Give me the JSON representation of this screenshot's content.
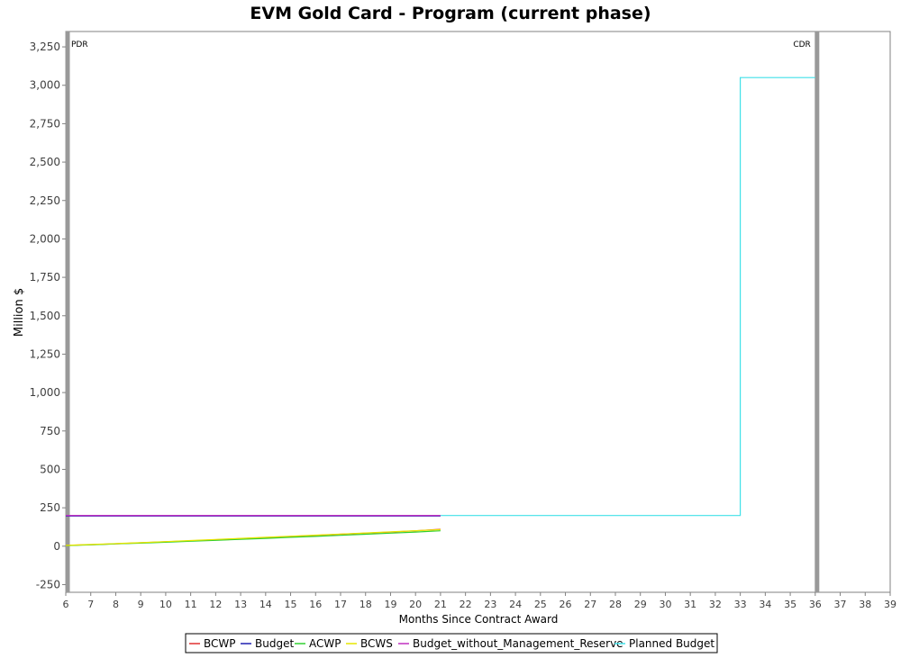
{
  "chart_data": {
    "type": "line",
    "title": "EVM Gold Card - Program (current phase)",
    "xlabel": "Months Since Contract Award",
    "ylabel": "Million $",
    "xlim": [
      6,
      39
    ],
    "ylim": [
      -300,
      3350
    ],
    "xticks": [
      6,
      7,
      8,
      9,
      10,
      11,
      12,
      13,
      14,
      15,
      16,
      17,
      18,
      19,
      20,
      21,
      22,
      23,
      24,
      25,
      26,
      27,
      28,
      29,
      30,
      31,
      32,
      33,
      34,
      35,
      36,
      37,
      38,
      39
    ],
    "yticks": [
      -250,
      0,
      250,
      500,
      750,
      1000,
      1250,
      1500,
      1750,
      2000,
      2250,
      2500,
      2750,
      3000,
      3250
    ],
    "ytick_labels": [
      "-250",
      "0",
      "250",
      "500",
      "750",
      "1,000",
      "1,250",
      "1,500",
      "1,750",
      "2,000",
      "2,250",
      "2,500",
      "2,750",
      "3,000",
      "3,250"
    ],
    "grid": false,
    "legend_position": "bottom",
    "milestones": [
      {
        "label": "PDR",
        "x": 6
      },
      {
        "label": "CDR",
        "x": 36
      }
    ],
    "series": [
      {
        "name": "BCWP",
        "color": "#e03030",
        "x": [
          6,
          7,
          8,
          9,
          10,
          11,
          12,
          13,
          14,
          15,
          16,
          17,
          18,
          19,
          20,
          21
        ],
        "y": [
          5,
          10,
          16,
          22,
          29,
          35,
          42,
          49,
          56,
          63,
          70,
          78,
          85,
          92,
          100,
          110
        ]
      },
      {
        "name": "Budget",
        "color": "#2020b0",
        "x": [
          6,
          21
        ],
        "y": [
          197,
          197
        ]
      },
      {
        "name": "ACWP",
        "color": "#30d030",
        "x": [
          6,
          7,
          8,
          9,
          10,
          11,
          12,
          13,
          14,
          15,
          16,
          17,
          18,
          19,
          20,
          21
        ],
        "y": [
          4,
          9,
          15,
          20,
          26,
          32,
          38,
          45,
          51,
          58,
          64,
          71,
          78,
          85,
          92,
          100
        ]
      },
      {
        "name": "BCWS",
        "color": "#e6e600",
        "x": [
          6,
          7,
          8,
          9,
          10,
          11,
          12,
          13,
          14,
          15,
          16,
          17,
          18,
          19,
          20,
          21
        ],
        "y": [
          5,
          11,
          17,
          23,
          30,
          37,
          44,
          51,
          58,
          65,
          72,
          79,
          86,
          93,
          101,
          108
        ]
      },
      {
        "name": "Budget_without_Management_Reserve",
        "color": "#c030c0",
        "x": [
          6,
          21
        ],
        "y": [
          200,
          200
        ]
      },
      {
        "name": "Planned Budget",
        "color": "#40e0e8",
        "x": [
          21,
          33,
          33,
          36
        ],
        "y": [
          200,
          200,
          3050,
          3050
        ]
      }
    ]
  }
}
